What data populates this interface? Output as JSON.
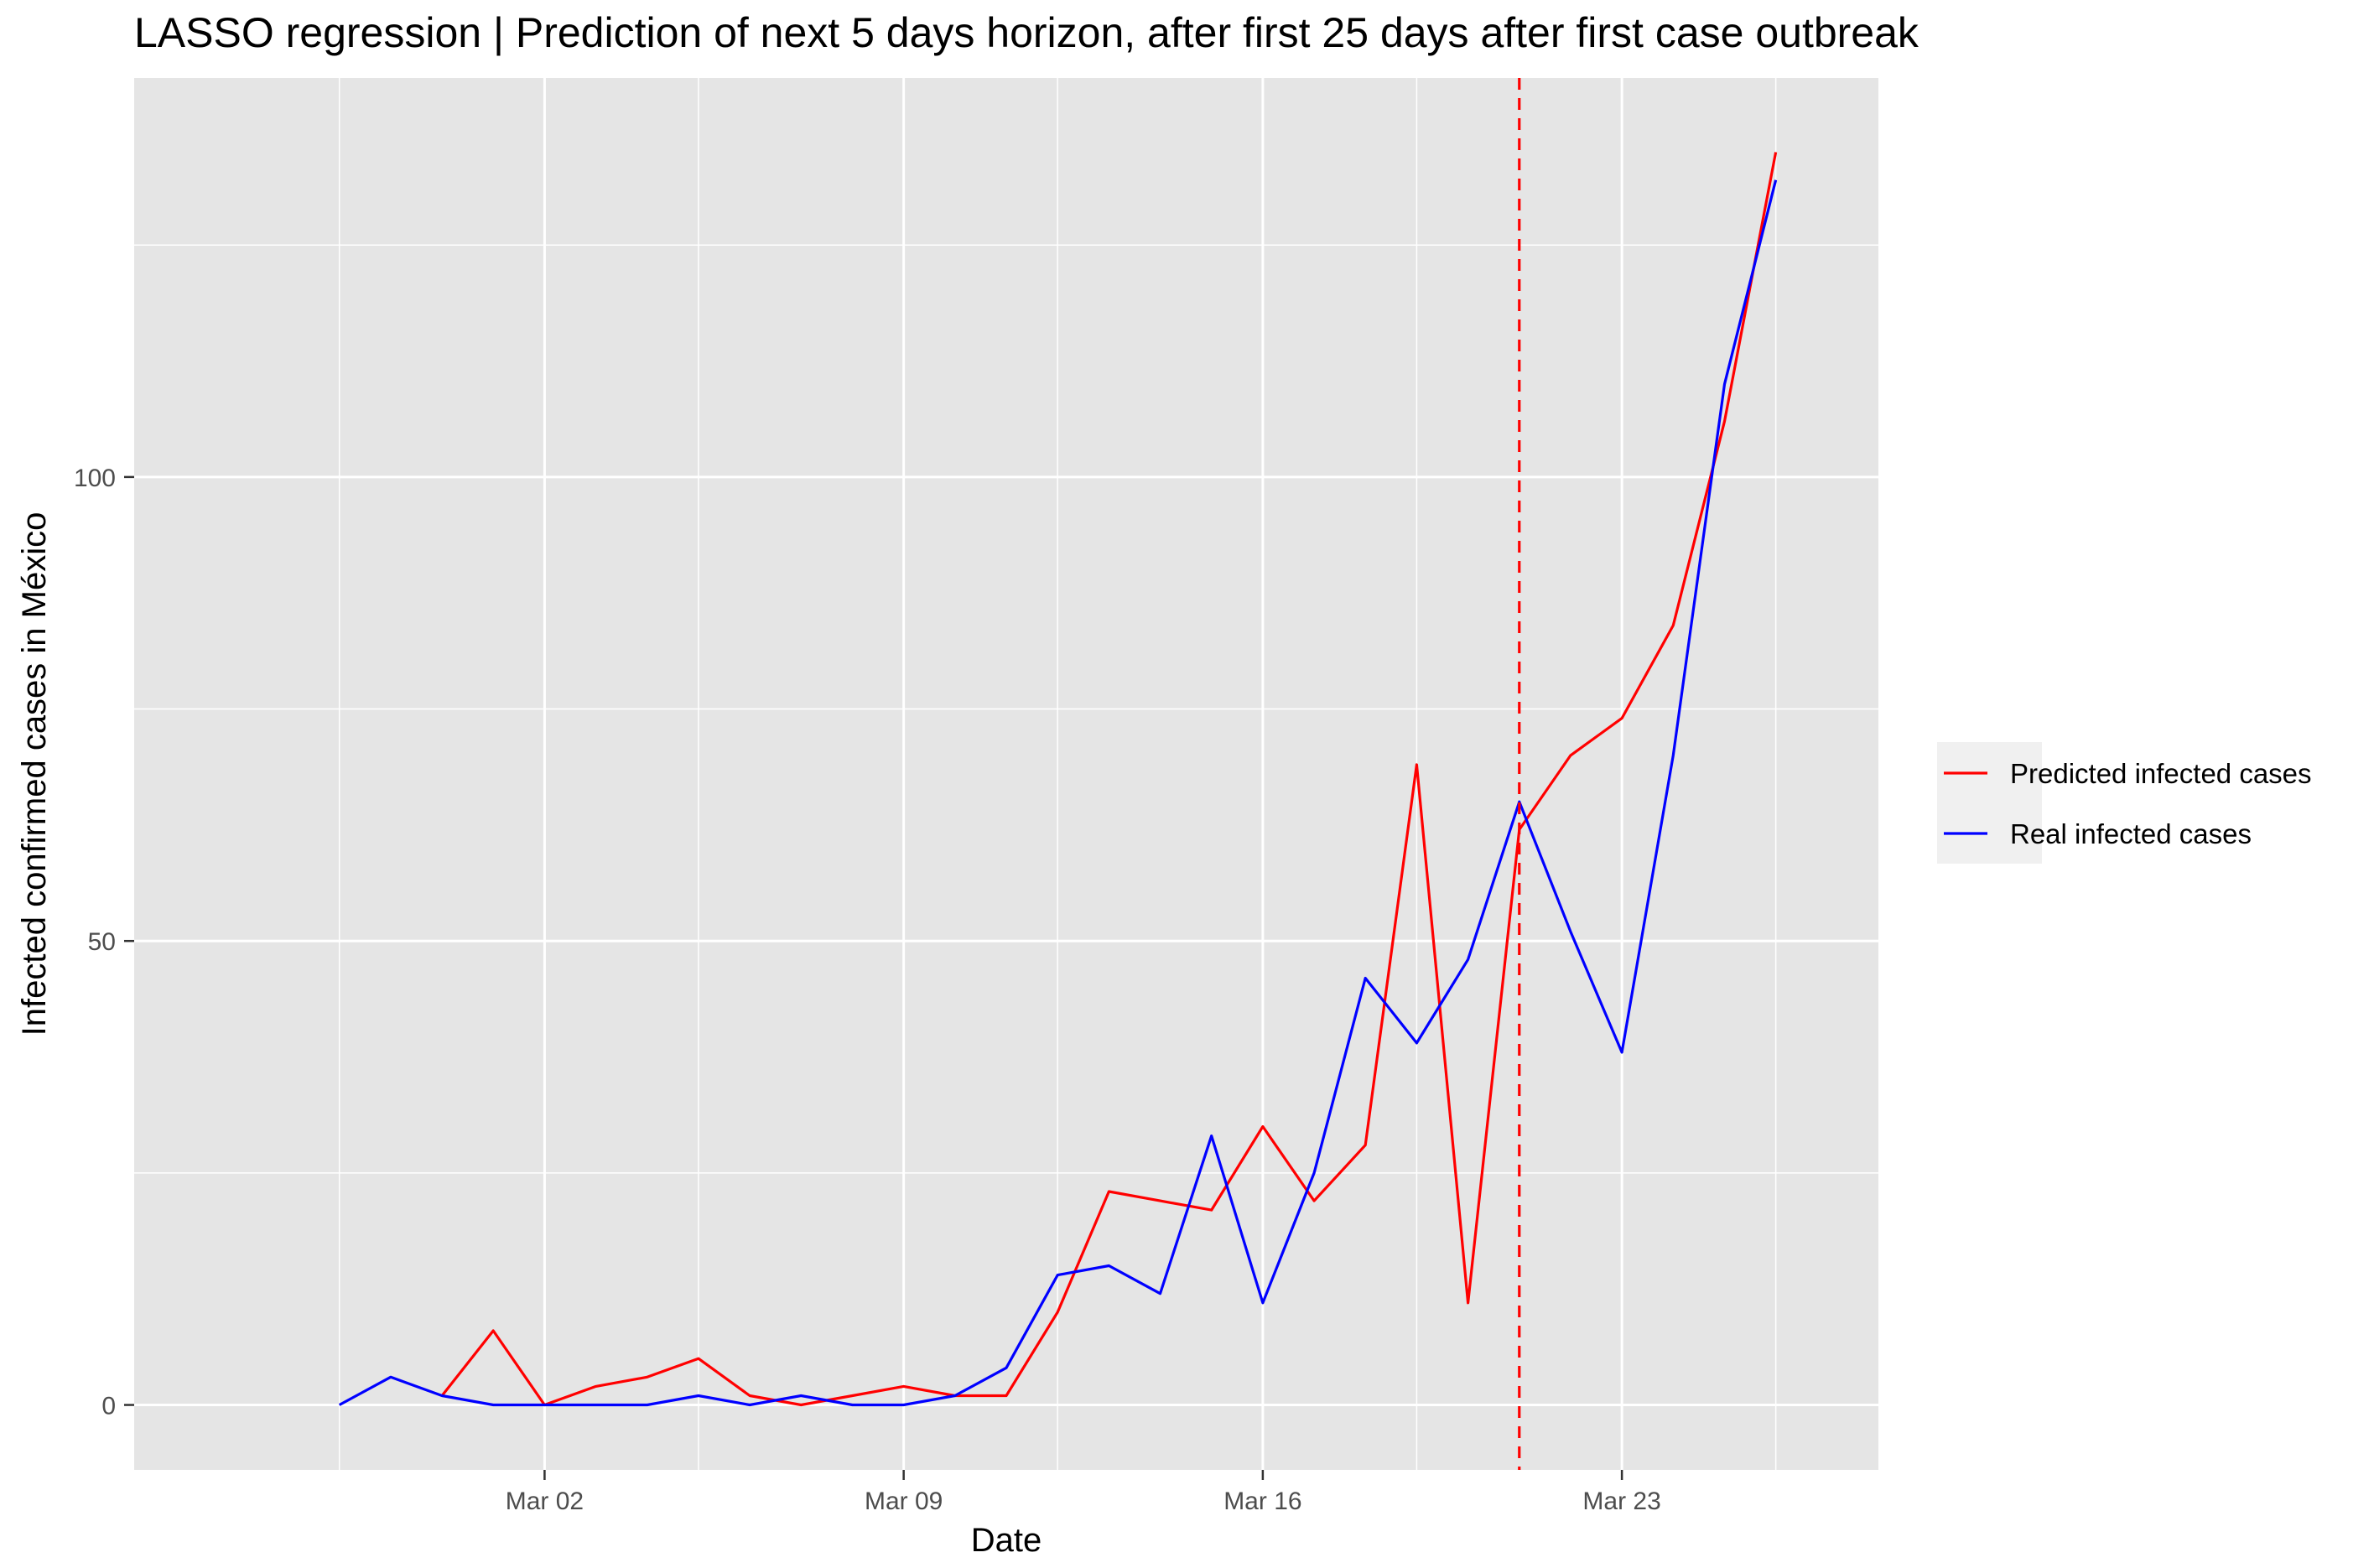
{
  "chart_data": {
    "type": "line",
    "title": "LASSO regression | Prediction of next 5 days horizon, after first 25 days after first case outbreak",
    "xlabel": "Date",
    "ylabel": "Infected confirmed cases in México",
    "x_ticks": [
      "Mar 02",
      "Mar 09",
      "Mar 16",
      "Mar 23"
    ],
    "y_ticks": [
      0,
      50,
      100
    ],
    "x_range": [
      "2020-02-23",
      "2020-03-28"
    ],
    "y_range": [
      -7,
      143
    ],
    "grid": true,
    "legend_position": "right",
    "forecast_start": "2020-03-21",
    "dates": [
      "2020-02-27",
      "2020-02-28",
      "2020-02-29",
      "2020-03-01",
      "2020-03-02",
      "2020-03-03",
      "2020-03-04",
      "2020-03-05",
      "2020-03-06",
      "2020-03-07",
      "2020-03-08",
      "2020-03-09",
      "2020-03-10",
      "2020-03-11",
      "2020-03-12",
      "2020-03-13",
      "2020-03-14",
      "2020-03-15",
      "2020-03-16",
      "2020-03-17",
      "2020-03-18",
      "2020-03-19",
      "2020-03-20",
      "2020-03-21",
      "2020-03-22",
      "2020-03-23",
      "2020-03-24",
      "2020-03-25",
      "2020-03-26"
    ],
    "series": [
      {
        "name": "Predicted infected cases",
        "color": "#ff0000",
        "values": [
          null,
          null,
          1,
          8,
          0,
          2,
          3,
          5,
          1,
          0,
          1,
          2,
          1,
          1,
          10,
          23,
          22,
          21,
          30,
          22,
          28,
          69,
          11,
          62,
          70,
          74,
          84,
          106,
          135
        ]
      },
      {
        "name": "Real infected cases",
        "color": "#0000ff",
        "values": [
          0,
          3,
          1,
          0,
          0,
          0,
          0,
          1,
          0,
          1,
          0,
          0,
          1,
          4,
          14,
          15,
          12,
          29,
          11,
          25,
          46,
          39,
          48,
          65,
          51,
          38,
          70,
          110,
          132
        ]
      }
    ]
  }
}
